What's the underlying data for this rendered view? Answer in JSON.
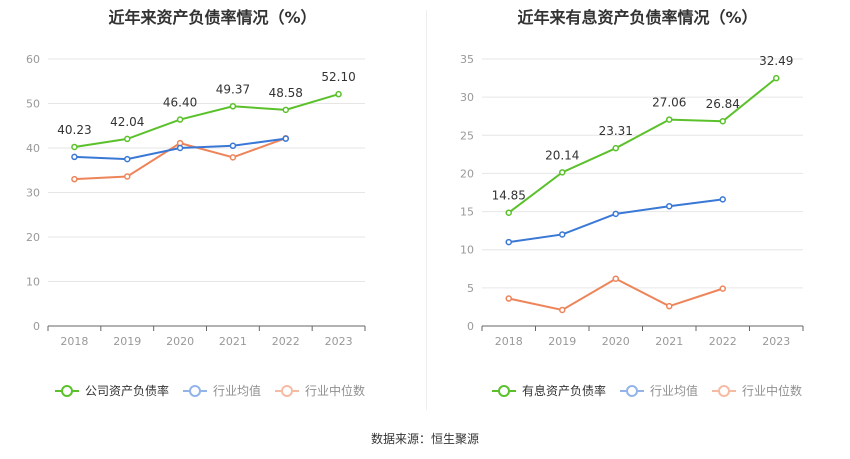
{
  "source_label": "数据来源：恒生聚源",
  "chart_data": [
    {
      "type": "line",
      "title": "近年来资产负债率情况（%）",
      "categories": [
        "2018",
        "2019",
        "2020",
        "2021",
        "2022",
        "2023"
      ],
      "ylim": [
        0,
        60
      ],
      "yticks": [
        0,
        10,
        20,
        30,
        40,
        50,
        60
      ],
      "grid": true,
      "legend_position": "bottom",
      "series": [
        {
          "name": "公司资产负债率",
          "color": "#5bc12b",
          "values": [
            40.23,
            42.04,
            46.4,
            49.37,
            48.58,
            52.1
          ],
          "labels": [
            "40.23",
            "42.04",
            "46.40",
            "49.37",
            "48.58",
            "52.10"
          ]
        },
        {
          "name": "行业均值",
          "color": "#3a78d6",
          "values": [
            38.0,
            37.5,
            40.0,
            40.5,
            42.1,
            null
          ],
          "labels": []
        },
        {
          "name": "行业中位数",
          "color": "#ee8459",
          "values": [
            33.0,
            33.6,
            41.1,
            37.9,
            42.2,
            null
          ],
          "labels": []
        }
      ]
    },
    {
      "type": "line",
      "title": "近年来有息资产负债率情况（%）",
      "categories": [
        "2018",
        "2019",
        "2020",
        "2021",
        "2022",
        "2023"
      ],
      "ylim": [
        0,
        35
      ],
      "yticks": [
        0,
        5,
        10,
        15,
        20,
        25,
        30,
        35
      ],
      "grid": true,
      "legend_position": "bottom",
      "series": [
        {
          "name": "有息资产负债率",
          "color": "#5bc12b",
          "values": [
            14.85,
            20.14,
            23.31,
            27.06,
            26.84,
            32.49
          ],
          "labels": [
            "14.85",
            "20.14",
            "23.31",
            "27.06",
            "26.84",
            "32.49"
          ]
        },
        {
          "name": "行业均值",
          "color": "#3a78d6",
          "values": [
            11.0,
            12.0,
            14.7,
            15.7,
            16.6,
            null
          ],
          "labels": []
        },
        {
          "name": "行业中位数",
          "color": "#ee8459",
          "values": [
            3.6,
            2.1,
            6.2,
            2.6,
            4.9,
            null
          ],
          "labels": []
        }
      ]
    }
  ]
}
